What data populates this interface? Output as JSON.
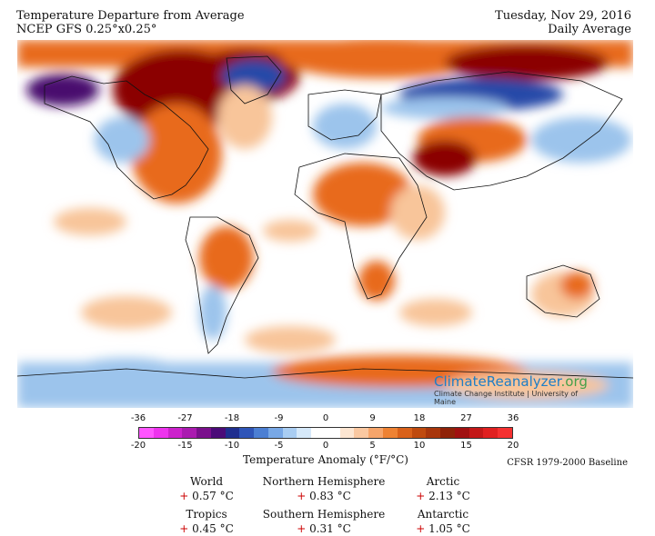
{
  "header": {
    "title": "Temperature Departure from Average",
    "subtitle": "NCEP GFS 0.25°x0.25°",
    "date": "Tuesday, Nov 29, 2016",
    "period": "Daily Average"
  },
  "colors": {
    "very_warm": "#8b0000",
    "warm": "#e86a1a",
    "mild": "#f8c59a",
    "cool": "#9cc4ec",
    "cold": "#2648a8",
    "very_cold": "#4a0b6e"
  },
  "scale": {
    "title": "Temperature Anomaly (°F/°C)",
    "fahrenheit_ticks": [
      "-36",
      "-27",
      "-18",
      "-9",
      "0",
      "9",
      "18",
      "27",
      "36"
    ],
    "celsius_ticks": [
      "-20",
      "-15",
      "-10",
      "-5",
      "0",
      "5",
      "10",
      "15",
      "20"
    ],
    "colors": [
      "#ff55ff",
      "#ee33ee",
      "#cc22cc",
      "#aa1ab0",
      "#7a0f8c",
      "#4b0b78",
      "#1f2e8f",
      "#2f55b8",
      "#4c7fd3",
      "#78a8e6",
      "#a9cdf2",
      "#d6e9fa",
      "#ffffff",
      "#ffffff",
      "#fde6d2",
      "#fac8a1",
      "#f6a56b",
      "#ee8233",
      "#d9611a",
      "#bf4a0e",
      "#a8360b",
      "#8f2208",
      "#a01010",
      "#c31818",
      "#e02020",
      "#f53030"
    ]
  },
  "baseline": "CFSR 1979-2000 Baseline",
  "brand": {
    "name": "ClimateReanalyzer",
    "tld": ".org",
    "affiliation": "Climate Change Institute | University of Maine"
  },
  "stats": [
    {
      "label": "World",
      "sign": "+",
      "value": "0.57 °C"
    },
    {
      "label": "Northern Hemisphere",
      "sign": "+",
      "value": "0.83 °C"
    },
    {
      "label": "Arctic",
      "sign": "+",
      "value": "2.13 °C"
    },
    {
      "label": "Tropics",
      "sign": "+",
      "value": "0.45 °C"
    },
    {
      "label": "Southern Hemisphere",
      "sign": "+",
      "value": "0.31 °C"
    },
    {
      "label": "Antarctic",
      "sign": "+",
      "value": "1.05 °C"
    }
  ]
}
